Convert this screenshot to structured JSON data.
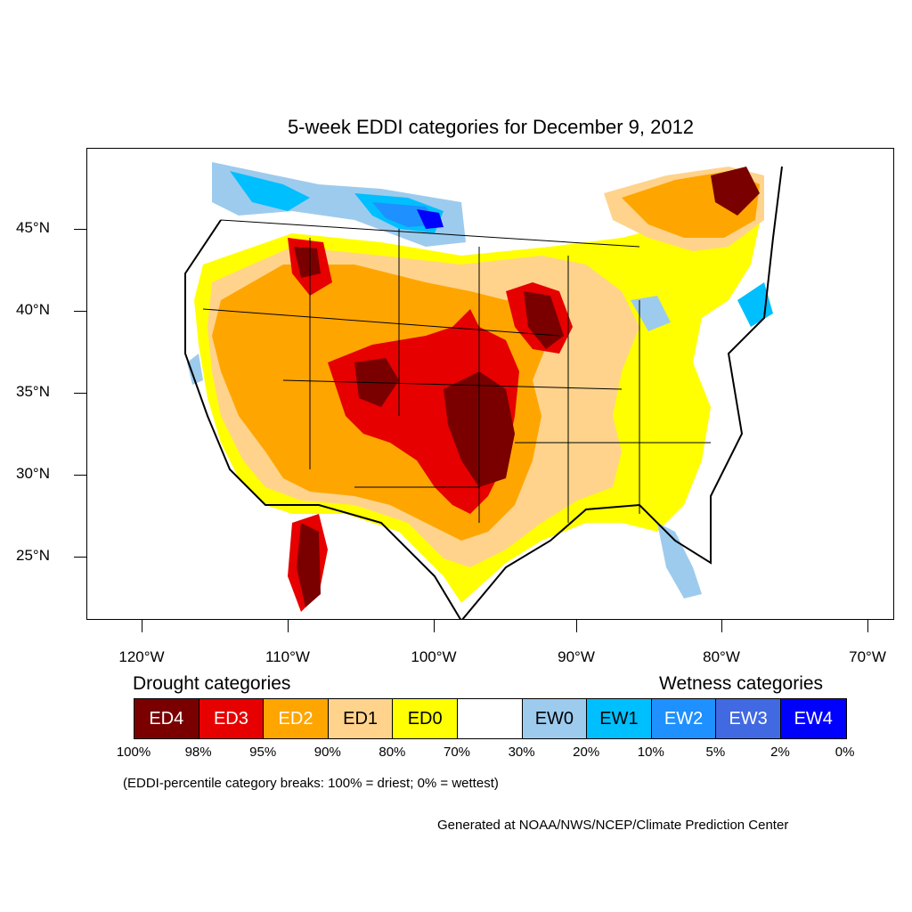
{
  "title": "5-week EDDI categories for December 9, 2012",
  "map": {
    "lat_labels": [
      "45°N",
      "40°N",
      "35°N",
      "30°N",
      "25°N"
    ],
    "lon_labels": [
      "120°W",
      "110°W",
      "100°W",
      "90°W",
      "80°W",
      "70°W"
    ]
  },
  "legend": {
    "drought_heading": "Drought categories",
    "wetness_heading": "Wetness categories",
    "categories": [
      {
        "label": "ED4",
        "color": "#7a0000",
        "text_color": "#ffffff"
      },
      {
        "label": "ED3",
        "color": "#e60000",
        "text_color": "#ffffff"
      },
      {
        "label": "ED2",
        "color": "#ffa500",
        "text_color": "#ffffff"
      },
      {
        "label": "ED1",
        "color": "#ffd38c",
        "text_color": "#000000"
      },
      {
        "label": "ED0",
        "color": "#ffff00",
        "text_color": "#000000"
      },
      {
        "label": "",
        "color": "#ffffff",
        "text_color": "#000000"
      },
      {
        "label": "EW0",
        "color": "#9dcbee",
        "text_color": "#000000"
      },
      {
        "label": "EW1",
        "color": "#00bfff",
        "text_color": "#000000"
      },
      {
        "label": "EW2",
        "color": "#1e90ff",
        "text_color": "#ffffff"
      },
      {
        "label": "EW3",
        "color": "#4169e1",
        "text_color": "#ffffff"
      },
      {
        "label": "EW4",
        "color": "#0000ff",
        "text_color": "#ffffff"
      }
    ],
    "percent_breaks": [
      "100%",
      "98%",
      "95%",
      "90%",
      "80%",
      "70%",
      "30%",
      "20%",
      "10%",
      "5%",
      "2%",
      "0%"
    ]
  },
  "note": "(EDDI-percentile category breaks: 100% = driest; 0% = wettest)",
  "credit": "Generated at NOAA/NWS/NCEP/Climate Prediction Center"
}
